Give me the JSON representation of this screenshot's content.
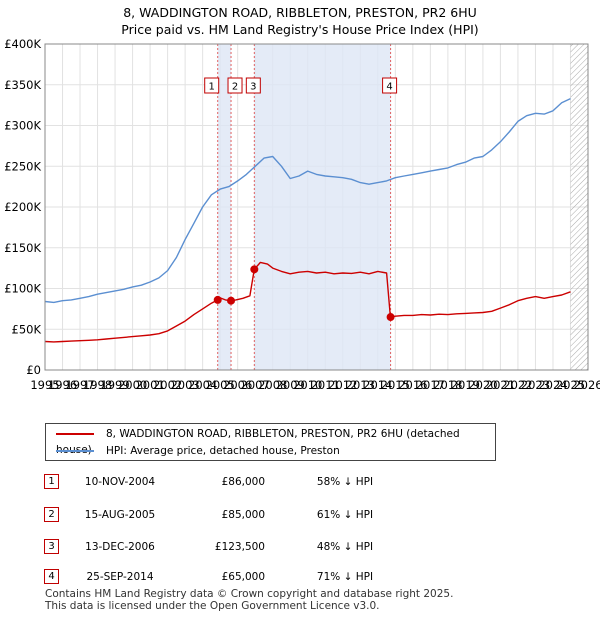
{
  "title": {
    "line1": "8, WADDINGTON ROAD, RIBBLETON, PRESTON, PR2 6HU",
    "line2": "Price paid vs. HM Land Registry's House Price Index (HPI)"
  },
  "chart_data": {
    "type": "line",
    "title": "8, WADDINGTON ROAD, RIBBLETON, PRESTON, PR2 6HU - Price paid vs. HM Land Registry's House Price Index (HPI)",
    "xlim": [
      1995,
      2026
    ],
    "ylim": [
      0,
      400000
    ],
    "y_ticks": [
      0,
      50000,
      100000,
      150000,
      200000,
      250000,
      300000,
      350000,
      400000
    ],
    "y_tick_labels": [
      "£0",
      "£50K",
      "£100K",
      "£150K",
      "£200K",
      "£250K",
      "£300K",
      "£350K",
      "£400K"
    ],
    "x_ticks": [
      1995,
      1996,
      1997,
      1998,
      1999,
      2000,
      2001,
      2002,
      2003,
      2004,
      2005,
      2006,
      2007,
      2008,
      2009,
      2010,
      2011,
      2012,
      2013,
      2014,
      2015,
      2016,
      2017,
      2018,
      2019,
      2020,
      2021,
      2022,
      2023,
      2024,
      2025,
      2026
    ],
    "x_tick_labels": [
      "1995",
      "1996",
      "1997",
      "1998",
      "1999",
      "2000",
      "2001",
      "2002",
      "2003",
      "2004",
      "2005",
      "2006",
      "2007",
      "2008",
      "2009",
      "2010",
      "2011",
      "2012",
      "2013",
      "2014",
      "2015",
      "2016",
      "2017",
      "2018",
      "2019",
      "2020",
      "2021",
      "2022",
      "2023",
      "2024",
      "2025",
      "2026"
    ],
    "grid": true,
    "forecast_start": 2025.0,
    "series": [
      {
        "name": "8, WADDINGTON ROAD, RIBBLETON, PRESTON, PR2 6HU (detached house)",
        "color": "#cc0000",
        "x": [
          1995,
          1995.5,
          1996,
          1996.5,
          1997,
          1997.5,
          1998,
          1998.5,
          1999,
          1999.5,
          2000,
          2000.5,
          2001,
          2001.5,
          2002,
          2002.5,
          2003,
          2003.5,
          2004,
          2004.5,
          2004.86,
          2005,
          2005.3,
          2005.62,
          2005.9,
          2006.3,
          2006.7,
          2006.95,
          2007.3,
          2007.7,
          2008,
          2008.5,
          2009,
          2009.5,
          2010,
          2010.5,
          2011,
          2011.5,
          2012,
          2012.5,
          2013,
          2013.5,
          2014,
          2014.5,
          2014.72,
          2015,
          2015.5,
          2016,
          2016.5,
          2017,
          2017.5,
          2018,
          2018.5,
          2019,
          2019.5,
          2020,
          2020.5,
          2021,
          2021.5,
          2022,
          2022.5,
          2023,
          2023.5,
          2024,
          2024.5,
          2025.0
        ],
        "values": [
          35000,
          34500,
          35000,
          35500,
          36000,
          36500,
          37000,
          38000,
          39000,
          40000,
          41000,
          42000,
          43000,
          44500,
          48000,
          54000,
          60000,
          68000,
          75000,
          82000,
          86000,
          88500,
          86000,
          85000,
          86000,
          88000,
          91000,
          123500,
          132000,
          130000,
          125000,
          121000,
          118000,
          120000,
          121000,
          119000,
          120000,
          118000,
          119000,
          118500,
          120000,
          118000,
          121000,
          119000,
          65000,
          66000,
          67000,
          67000,
          68000,
          67500,
          68500,
          68000,
          69000,
          69500,
          70000,
          70500,
          72000,
          76000,
          80000,
          85000,
          88000,
          90000,
          88000,
          90000,
          92000,
          96000
        ]
      },
      {
        "name": "HPI: Average price, detached house, Preston",
        "color": "#5b8fd1",
        "x": [
          1995,
          1995.5,
          1996,
          1996.5,
          1997,
          1997.5,
          1998,
          1998.5,
          1999,
          1999.5,
          2000,
          2000.5,
          2001,
          2001.5,
          2002,
          2002.5,
          2003,
          2003.5,
          2004,
          2004.5,
          2005,
          2005.5,
          2006,
          2006.5,
          2007,
          2007.5,
          2008,
          2008.5,
          2009,
          2009.5,
          2010,
          2010.5,
          2011,
          2011.5,
          2012,
          2012.5,
          2013,
          2013.5,
          2014,
          2014.5,
          2015,
          2015.5,
          2016,
          2016.5,
          2017,
          2017.5,
          2018,
          2018.5,
          2019,
          2019.5,
          2020,
          2020.5,
          2021,
          2021.5,
          2022,
          2022.5,
          2023,
          2023.5,
          2024,
          2024.5,
          2025.0
        ],
        "values": [
          84000,
          83000,
          85000,
          86000,
          88000,
          90000,
          93000,
          95000,
          97000,
          99000,
          102000,
          104000,
          108000,
          113000,
          122000,
          138000,
          160000,
          180000,
          200000,
          215000,
          222000,
          225000,
          232000,
          240000,
          250000,
          260000,
          262000,
          250000,
          235000,
          238000,
          244000,
          240000,
          238000,
          237000,
          236000,
          234000,
          230000,
          228000,
          230000,
          232000,
          236000,
          238000,
          240000,
          242000,
          244000,
          246000,
          248000,
          252000,
          255000,
          260000,
          262000,
          270000,
          280000,
          292000,
          305000,
          312000,
          315000,
          314000,
          318000,
          328000,
          333000
        ]
      }
    ],
    "sales": [
      {
        "id": "1",
        "x": 2004.86,
        "value": 86000
      },
      {
        "id": "2",
        "x": 2005.62,
        "value": 85000
      },
      {
        "id": "3",
        "x": 2006.95,
        "value": 123500
      },
      {
        "id": "4",
        "x": 2014.73,
        "value": 65000
      }
    ]
  },
  "legend": {
    "property_label": "8, WADDINGTON ROAD, RIBBLETON, PRESTON, PR2 6HU (detached house)",
    "hpi_label": "HPI: Average price, detached house, Preston",
    "property_color": "#cc0000",
    "hpi_color": "#5b8fd1"
  },
  "table": [
    {
      "id": "1",
      "date": "10-NOV-2004",
      "price": "£86,000",
      "hpi": "58% ↓ HPI"
    },
    {
      "id": "2",
      "date": "15-AUG-2005",
      "price": "£85,000",
      "hpi": "61% ↓ HPI"
    },
    {
      "id": "3",
      "date": "13-DEC-2006",
      "price": "£123,500",
      "hpi": "48% ↓ HPI"
    },
    {
      "id": "4",
      "date": "25-SEP-2014",
      "price": "£65,000",
      "hpi": "71% ↓ HPI"
    }
  ],
  "footer": {
    "line1": "Contains HM Land Registry data © Crown copyright and database right 2025.",
    "line2": "This data is licensed under the Open Government Licence v3.0."
  }
}
